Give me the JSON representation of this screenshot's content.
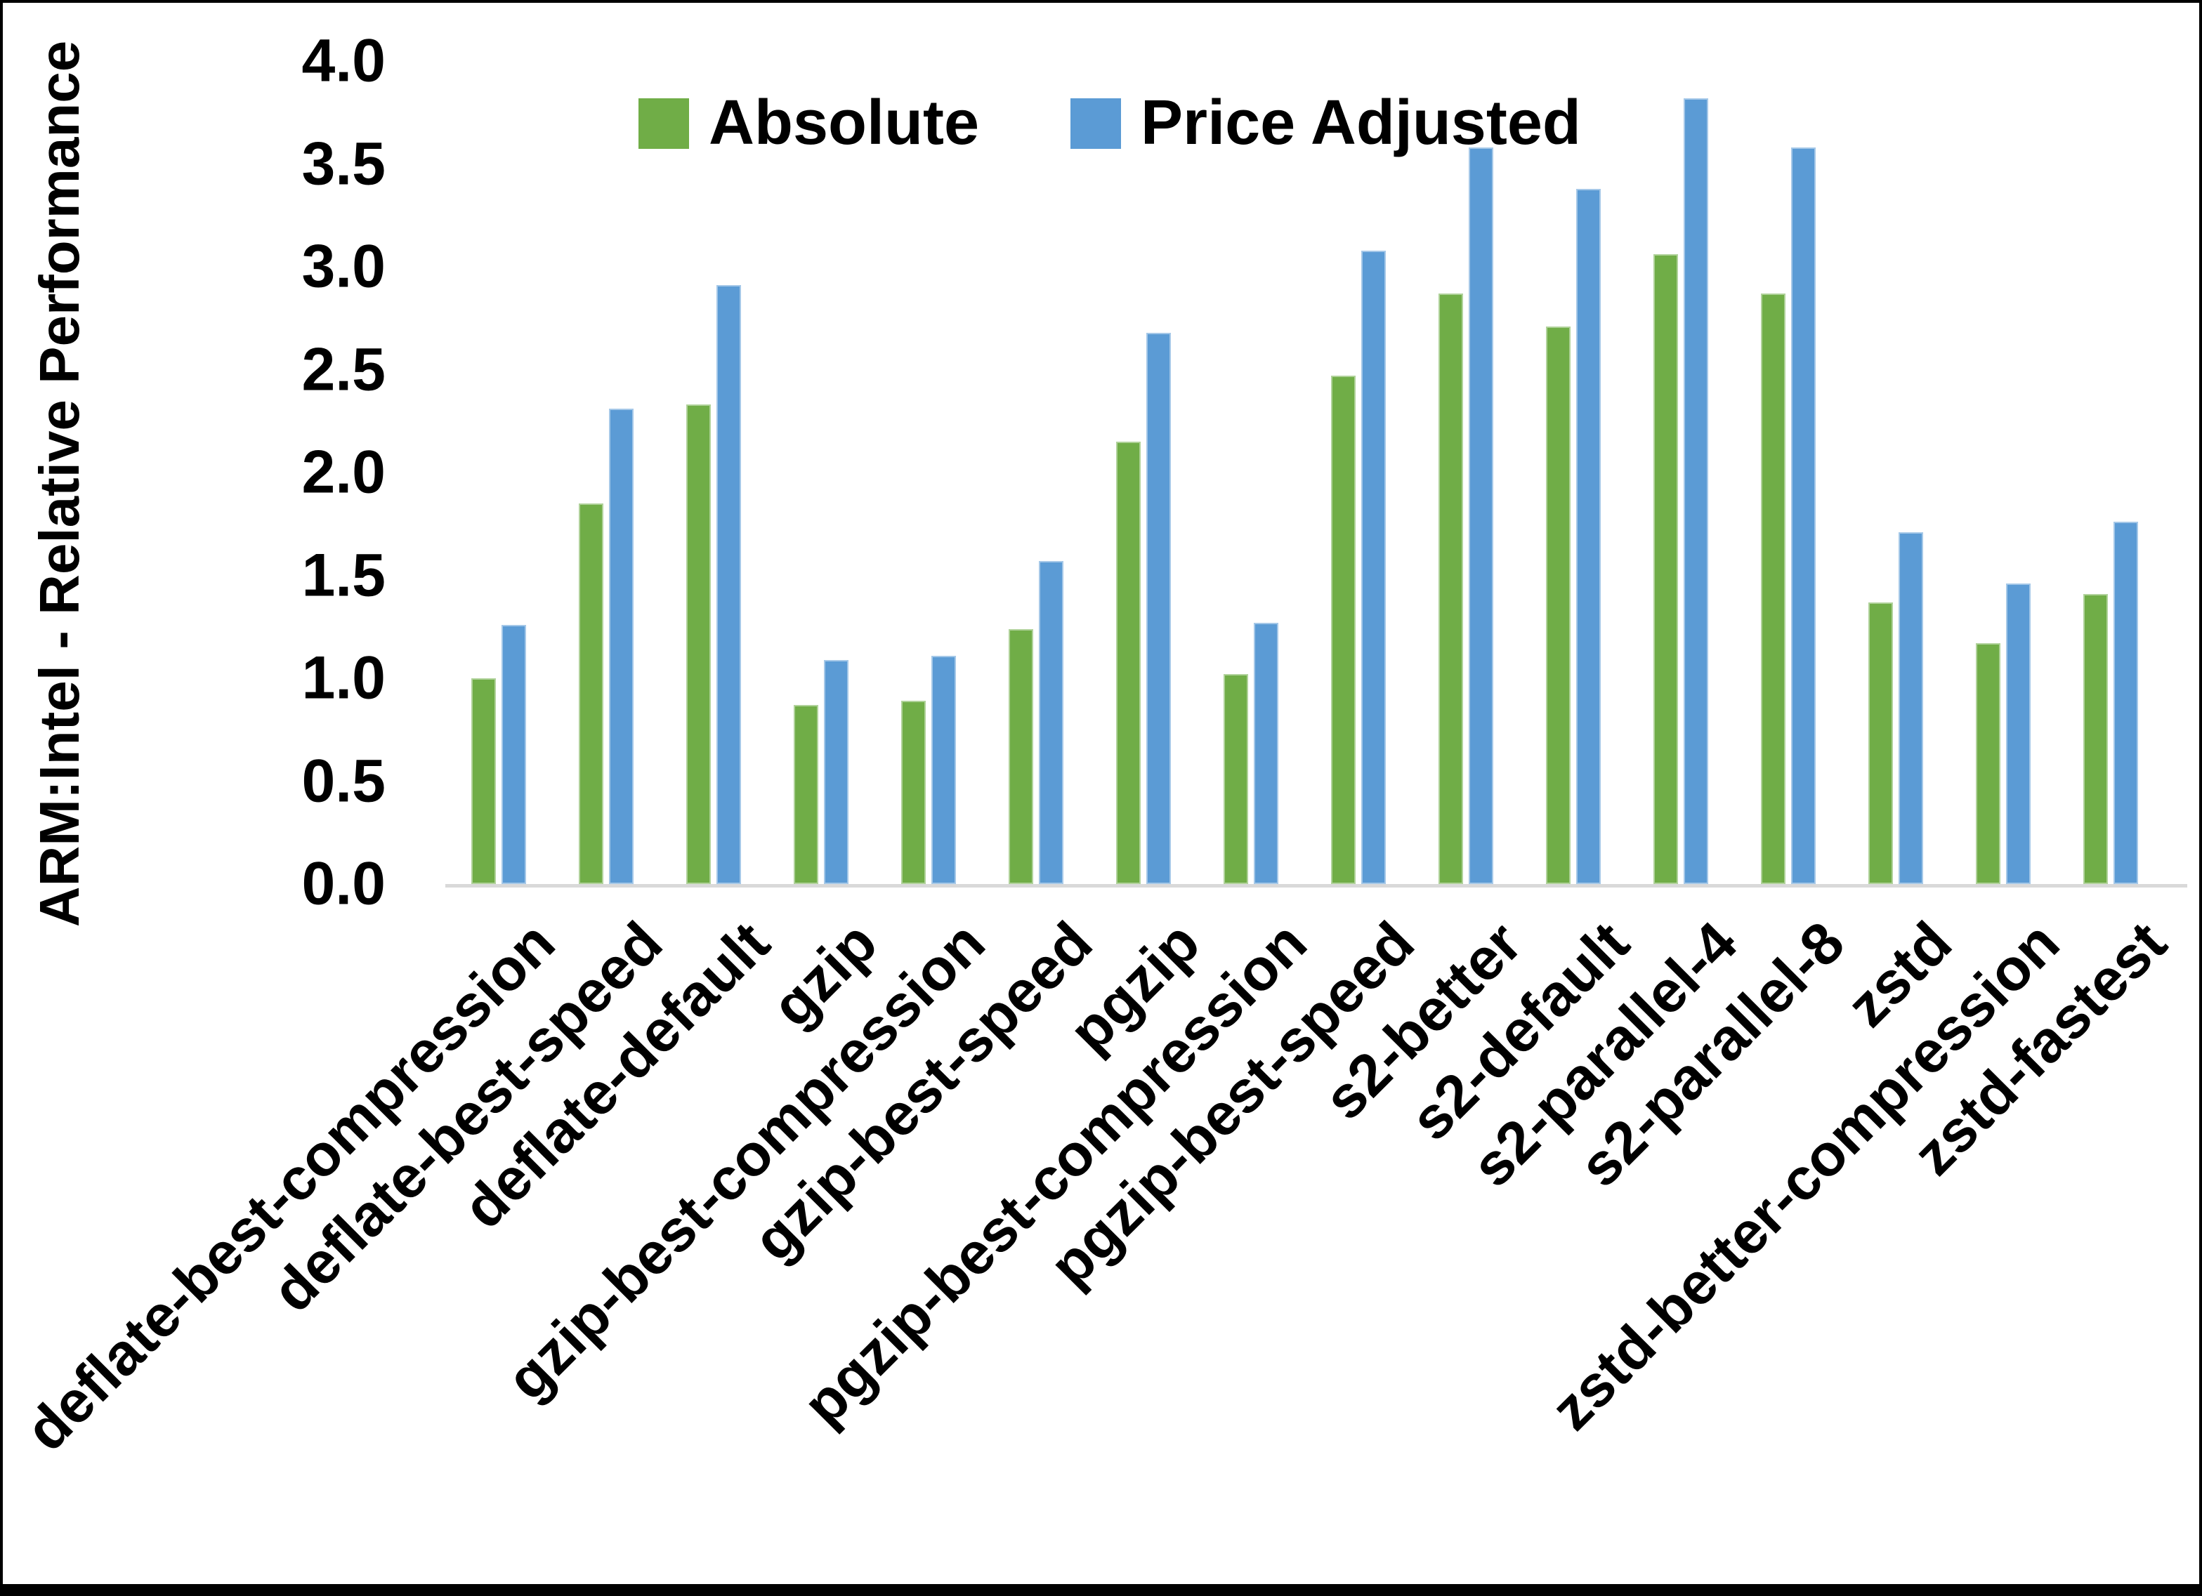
{
  "figure": {
    "y_axis_title": "ARM:Intel - Relative Performance"
  },
  "colors": {
    "absolute_series": "#70AD47",
    "price_adjusted_series": "#5B9BD5",
    "axis_line": "#D9D9D9",
    "text": "#000000",
    "background": "#FFFFFF",
    "frame": "#000000"
  },
  "chart_data": {
    "type": "bar",
    "title": "",
    "xlabel": "",
    "ylabel": "ARM:Intel - Relative Performance",
    "ylim": [
      0.0,
      4.0
    ],
    "ytick_step": 0.5,
    "ytick_labels": [
      "4.0",
      "3.5",
      "3.0",
      "2.5",
      "2.0",
      "1.5",
      "1.0",
      "0.5",
      "0.0"
    ],
    "grid": false,
    "legend_position": "top-center",
    "categories": [
      "deflate-best-compression",
      "deflate-best-speed",
      "deflate-default",
      "gzip",
      "gzip-best-compression",
      "gzip-best-speed",
      "pgzip",
      "pgzip-best-compression",
      "pgzip-best-speed",
      "s2-better",
      "s2-default",
      "s2-parallel-4",
      "s2-parallel-8",
      "zstd",
      "zstd-better-compression",
      "zstd-fastest"
    ],
    "series": [
      {
        "name": "Absolute",
        "color": "#70AD47",
        "values": [
          1.0,
          1.85,
          2.33,
          0.87,
          0.89,
          1.24,
          2.15,
          1.02,
          2.47,
          2.87,
          2.71,
          3.06,
          2.87,
          1.37,
          1.17,
          1.41
        ]
      },
      {
        "name": "Price Adjusted",
        "color": "#5B9BD5",
        "values": [
          1.26,
          2.31,
          2.91,
          1.09,
          1.11,
          1.57,
          2.68,
          1.27,
          3.08,
          3.58,
          3.38,
          3.82,
          3.58,
          1.71,
          1.46,
          1.76
        ]
      }
    ]
  }
}
